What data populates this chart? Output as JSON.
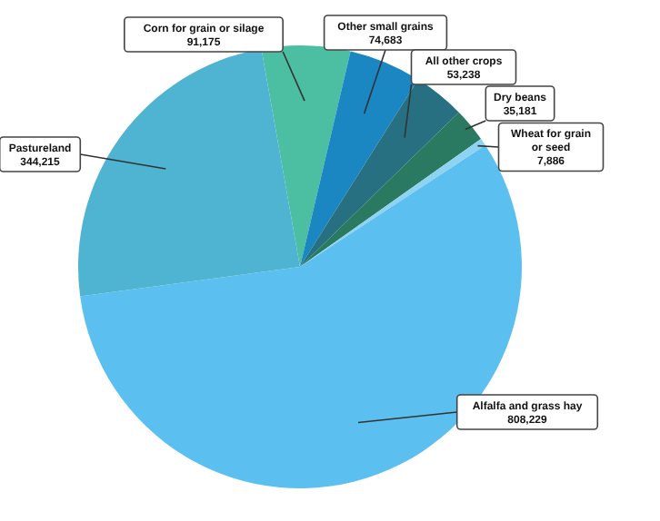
{
  "chart_data": {
    "type": "pie",
    "categories": [
      "Corn for grain or silage",
      "Other small grains",
      "All other crops",
      "Dry beans",
      "Wheat for grain or seed",
      "Alfalfa and grass hay",
      "Pastureland"
    ],
    "values": [
      91175,
      74683,
      53238,
      35181,
      7886,
      808229,
      344215
    ],
    "colors": [
      "#4cbfa2",
      "#1a86c2",
      "#277082",
      "#2a7a62",
      "#8fd3f2",
      "#5bc0ef",
      "#4fb3d2"
    ],
    "value_labels": [
      "91,175",
      "74,683",
      "53,238",
      "35,181",
      "7,886",
      "808,229",
      "344,215"
    ]
  }
}
